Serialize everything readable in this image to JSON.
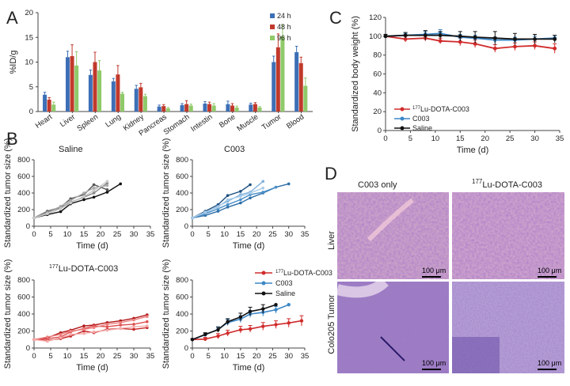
{
  "panels": {
    "A": "A",
    "B": "B",
    "C": "C",
    "D": "D"
  },
  "colors": {
    "h24": "#3d6fb6",
    "h48": "#c0392b",
    "h96": "#8fca6a",
    "lu": "#d12b2b",
    "c003": "#3a87c8",
    "saline": "#111111"
  },
  "chart_data": [
    {
      "id": "A",
      "type": "bar",
      "title": "",
      "xlabel": "",
      "ylabel": "%ID/g",
      "ylim": [
        0,
        20
      ],
      "yticks": [
        0,
        5,
        10,
        15,
        20
      ],
      "categories": [
        "Heart",
        "Liver",
        "Spleen",
        "Lung",
        "Kidney",
        "Pancreas",
        "Stomach",
        "Intestin",
        "Bone",
        "Muscle",
        "Tumor",
        "Blood"
      ],
      "series": [
        {
          "name": "24 h",
          "color": "#3d6fb6",
          "values": [
            3.4,
            11.0,
            7.4,
            6.1,
            4.6,
            1.0,
            1.3,
            1.6,
            1.5,
            1.4,
            10.0,
            12.0
          ],
          "err": [
            0.5,
            1.2,
            1.0,
            0.6,
            0.7,
            0.3,
            0.3,
            0.4,
            0.6,
            0.3,
            1.2,
            1.2
          ]
        },
        {
          "name": "48 h",
          "color": "#c0392b",
          "values": [
            2.4,
            11.2,
            10.0,
            7.5,
            4.9,
            1.1,
            1.5,
            1.5,
            1.2,
            1.5,
            13.0,
            9.8
          ],
          "err": [
            0.4,
            2.3,
            2.0,
            1.8,
            0.8,
            0.3,
            0.7,
            0.4,
            0.4,
            0.3,
            2.7,
            1.2
          ]
        },
        {
          "name": "96 h",
          "color": "#8fca6a",
          "values": [
            1.4,
            9.3,
            8.3,
            3.6,
            3.1,
            0.6,
            1.2,
            1.2,
            0.8,
            0.8,
            15.2,
            5.2
          ],
          "err": [
            0.5,
            2.8,
            2.0,
            0.3,
            0.4,
            0.2,
            0.3,
            0.4,
            0.3,
            0.2,
            2.4,
            1.6
          ]
        }
      ]
    },
    {
      "id": "B1",
      "type": "line",
      "title": "Saline",
      "xlabel": "Time (d)",
      "ylabel": "Standardized tumor size (%)",
      "xlim": [
        0,
        35
      ],
      "ylim": [
        0,
        800
      ],
      "xticks": [
        0,
        5,
        10,
        15,
        20,
        25,
        30,
        35
      ],
      "yticks": [
        0,
        200,
        400,
        600,
        800
      ],
      "series": [
        {
          "name": "mouse 1",
          "color": "#111111",
          "x": [
            0,
            4,
            8,
            11,
            15,
            18,
            22,
            26
          ],
          "y": [
            100,
            140,
            175,
            270,
            320,
            350,
            410,
            510
          ]
        },
        {
          "name": "mouse 2",
          "color": "#555555",
          "x": [
            0,
            4,
            8,
            11,
            15,
            18,
            22
          ],
          "y": [
            100,
            180,
            230,
            330,
            380,
            500,
            440
          ]
        },
        {
          "name": "mouse 3",
          "color": "#888888",
          "x": [
            0,
            4,
            8,
            11,
            15,
            18,
            22
          ],
          "y": [
            100,
            170,
            220,
            290,
            350,
            400,
            520
          ]
        },
        {
          "name": "mouse 4",
          "color": "#aaaaaa",
          "x": [
            0,
            4,
            8,
            11,
            15,
            18,
            22
          ],
          "y": [
            100,
            160,
            240,
            310,
            400,
            460,
            490
          ]
        },
        {
          "name": "mouse 5",
          "color": "#c8c8c8",
          "x": [
            0,
            4,
            8,
            11,
            15,
            18,
            22
          ],
          "y": [
            100,
            150,
            210,
            280,
            360,
            430,
            540
          ]
        }
      ]
    },
    {
      "id": "B2",
      "type": "line",
      "title": "C003",
      "xlabel": "Time (d)",
      "ylabel": "Standardized tumor size (%)",
      "xlim": [
        0,
        35
      ],
      "ylim": [
        0,
        800
      ],
      "xticks": [
        0,
        5,
        10,
        15,
        20,
        25,
        30,
        35
      ],
      "yticks": [
        0,
        200,
        400,
        600,
        800
      ],
      "series": [
        {
          "name": "mouse 1",
          "color": "#1c4f80",
          "x": [
            0,
            4,
            8,
            11,
            15,
            18
          ],
          "y": [
            100,
            180,
            260,
            370,
            420,
            500
          ]
        },
        {
          "name": "mouse 2",
          "color": "#2e6fa8",
          "x": [
            0,
            4,
            8,
            11,
            15,
            18,
            22,
            26,
            30
          ],
          "y": [
            100,
            130,
            180,
            230,
            280,
            340,
            400,
            470,
            510
          ]
        },
        {
          "name": "mouse 3",
          "color": "#4a8fc8",
          "x": [
            0,
            4,
            8,
            11,
            15,
            18,
            22,
            26
          ],
          "y": [
            100,
            150,
            210,
            260,
            320,
            380,
            410,
            470
          ]
        },
        {
          "name": "mouse 4",
          "color": "#7fb1dc",
          "x": [
            0,
            4,
            8,
            11,
            15,
            18,
            22
          ],
          "y": [
            100,
            160,
            240,
            300,
            380,
            410,
            540
          ]
        },
        {
          "name": "mouse 5",
          "color": "#a9cbe8",
          "x": [
            0,
            4,
            8,
            11,
            15,
            18,
            22
          ],
          "y": [
            100,
            170,
            230,
            320,
            360,
            400,
            460
          ]
        }
      ]
    },
    {
      "id": "B3",
      "type": "line",
      "title": "177Lu-DOTA-C003",
      "xlabel": "Time (d)",
      "ylabel": "Standardized tumor size (%)",
      "xlim": [
        0,
        35
      ],
      "ylim": [
        0,
        800
      ],
      "xticks": [
        0,
        5,
        10,
        15,
        20,
        25,
        30,
        35
      ],
      "yticks": [
        0,
        200,
        400,
        600,
        800
      ],
      "series": [
        {
          "name": "mouse 1",
          "color": "#b01818",
          "x": [
            0,
            4,
            8,
            11,
            15,
            18,
            22,
            26,
            30,
            34
          ],
          "y": [
            100,
            120,
            180,
            210,
            260,
            270,
            300,
            320,
            350,
            390
          ]
        },
        {
          "name": "mouse 2",
          "color": "#c62828",
          "x": [
            0,
            4,
            8,
            11,
            15,
            18,
            22,
            26,
            30,
            34
          ],
          "y": [
            100,
            90,
            110,
            140,
            200,
            180,
            220,
            230,
            220,
            240
          ]
        },
        {
          "name": "mouse 3",
          "color": "#e05050",
          "x": [
            0,
            4,
            8,
            11,
            15,
            18,
            22,
            26,
            30,
            34
          ],
          "y": [
            100,
            110,
            130,
            190,
            230,
            260,
            250,
            270,
            280,
            310
          ]
        },
        {
          "name": "mouse 4",
          "color": "#ec8080",
          "x": [
            0,
            4,
            8,
            11,
            15,
            18,
            22,
            26,
            30,
            34
          ],
          "y": [
            100,
            130,
            160,
            200,
            220,
            240,
            280,
            300,
            330,
            370
          ]
        },
        {
          "name": "mouse 5",
          "color": "#f5aaaa",
          "x": [
            0,
            4,
            8,
            11,
            15,
            18,
            22,
            26,
            30,
            34
          ],
          "y": [
            100,
            80,
            120,
            160,
            170,
            190,
            210,
            230,
            250,
            260
          ]
        }
      ]
    },
    {
      "id": "B4",
      "type": "line",
      "title": "",
      "xlabel": "Time (d)",
      "ylabel": "Standardized tumor size (%)",
      "xlim": [
        0,
        35
      ],
      "ylim": [
        0,
        800
      ],
      "xticks": [
        0,
        5,
        10,
        15,
        20,
        25,
        30,
        35
      ],
      "yticks": [
        0,
        200,
        400,
        600,
        800
      ],
      "legend": [
        "177Lu-DOTA-C003",
        "C003",
        "Saline"
      ],
      "series": [
        {
          "name": "177Lu-DOTA-C003",
          "color": "#d12b2b",
          "x": [
            0,
            4,
            8,
            11,
            15,
            18,
            22,
            26,
            30,
            34
          ],
          "y": [
            100,
            105,
            140,
            175,
            215,
            225,
            255,
            275,
            295,
            320
          ],
          "err": [
            10,
            20,
            30,
            35,
            40,
            40,
            45,
            45,
            50,
            60
          ]
        },
        {
          "name": "C003",
          "color": "#3a87c8",
          "x": [
            0,
            4,
            8,
            11,
            15,
            18,
            22,
            26,
            30
          ],
          "y": [
            100,
            155,
            220,
            300,
            340,
            400,
            420,
            450,
            510
          ],
          "err": [
            10,
            20,
            30,
            35,
            40,
            40,
            45,
            40,
            0
          ]
        },
        {
          "name": "Saline",
          "color": "#111111",
          "x": [
            0,
            4,
            8,
            11,
            15,
            18,
            22,
            26
          ],
          "y": [
            100,
            160,
            215,
            310,
            365,
            430,
            460,
            510
          ],
          "err": [
            10,
            20,
            30,
            35,
            45,
            50,
            50,
            0
          ]
        }
      ]
    },
    {
      "id": "C",
      "type": "line",
      "title": "",
      "xlabel": "Time (d)",
      "ylabel": "Standardized body weight (%)",
      "xlim": [
        0,
        35
      ],
      "ylim": [
        0,
        120
      ],
      "xticks": [
        0,
        5,
        10,
        15,
        20,
        25,
        30,
        35
      ],
      "yticks": [
        0,
        20,
        40,
        60,
        80,
        100,
        120
      ],
      "legend": [
        "177Lu-DOTA-C003",
        "C003",
        "Saline"
      ],
      "series": [
        {
          "name": "177Lu-DOTA-C003",
          "color": "#d12b2b",
          "x": [
            0,
            4,
            8,
            11,
            15,
            18,
            22,
            26,
            30,
            34
          ],
          "y": [
            100,
            97,
            98,
            95,
            94,
            92,
            87,
            89,
            90,
            87
          ],
          "err": [
            2,
            3,
            3,
            3,
            4,
            4,
            4,
            4,
            4,
            5
          ]
        },
        {
          "name": "C003",
          "color": "#3a87c8",
          "x": [
            0,
            4,
            8,
            11,
            15,
            18,
            22,
            26,
            30,
            34
          ],
          "y": [
            100,
            101,
            102,
            103,
            99,
            98,
            96,
            96,
            97,
            98
          ],
          "err": [
            2,
            2,
            3,
            4,
            3,
            3,
            3,
            3,
            3,
            3
          ]
        },
        {
          "name": "Saline",
          "color": "#111111",
          "x": [
            0,
            4,
            8,
            11,
            15,
            18,
            22,
            26,
            30,
            34
          ],
          "y": [
            100,
            101,
            101,
            101,
            100,
            99,
            98,
            97,
            97,
            97
          ],
          "err": [
            2,
            3,
            5,
            4,
            5,
            6,
            7,
            6,
            5,
            4
          ]
        }
      ]
    }
  ],
  "labelsA": {
    "legend24": "24 h",
    "legend48": "48 h",
    "legend96": "96 h"
  },
  "labelsB": {
    "saline": "Saline",
    "c003": "C003",
    "lu_sup": "177",
    "lu_rest": "Lu-DOTA-C003"
  },
  "legendText": {
    "lu_sup": "177",
    "lu_rest": "Lu-DOTA-C003",
    "c003": "C003",
    "saline": "Saline"
  },
  "histology": {
    "col1": "C003 only",
    "col2_sup": "177",
    "col2_rest": "Lu-DOTA-C003",
    "row1": "Liver",
    "row2": "Colo205 Tumor",
    "scale": "100 μm"
  }
}
